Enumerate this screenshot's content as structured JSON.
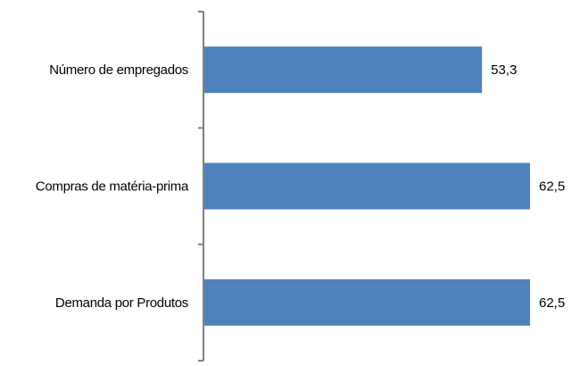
{
  "chart_data": {
    "type": "bar",
    "orientation": "horizontal",
    "categories": [
      "Número de empregados",
      "Compras de matéria-prima",
      "Demanda por Produtos"
    ],
    "values": [
      53.3,
      62.5,
      62.5
    ],
    "value_labels": [
      "53,3",
      "62,5",
      "62,5"
    ],
    "title": "",
    "xlabel": "",
    "ylabel": "",
    "xlim": [
      0,
      62.5
    ],
    "grid": false,
    "legend": "none",
    "bar_color": "#4f81bd",
    "axis_color": "#808080"
  }
}
